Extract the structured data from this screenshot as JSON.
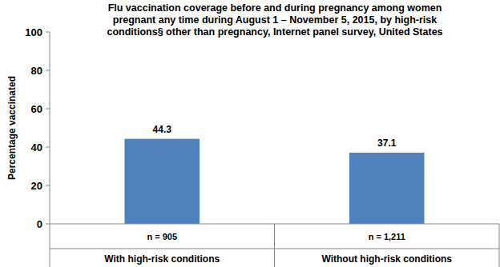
{
  "chart_data": {
    "type": "bar",
    "title": [
      "Flu vaccination coverage before and during pregnancy among women",
      "pregnant any time during August 1 – November 5, 2015, by high-risk",
      "conditions§ other than pregnancy, Internet panel survey, United States"
    ],
    "y_label": "Percentage vaccinated",
    "categories": [
      "With high-risk conditions",
      "Without high-risk conditions"
    ],
    "n_labels": [
      "n = 905",
      "n = 1,211"
    ],
    "values": [
      44.3,
      37.1
    ],
    "color": "#4f81bd",
    "ylim": [
      0,
      100
    ],
    "yticks": [
      0,
      20,
      40,
      60,
      80,
      100
    ],
    "grid": false,
    "data_labels": true
  }
}
